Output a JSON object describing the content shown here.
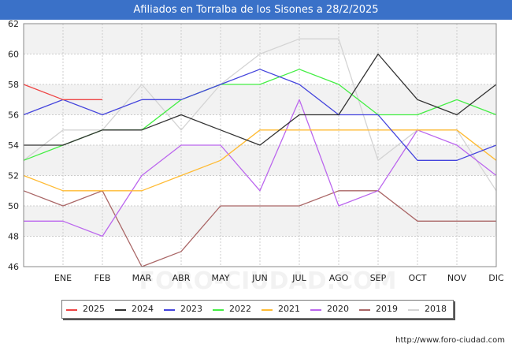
{
  "header": {
    "title": "Afiliados en Torralba de los Sisones a 28/2/2025"
  },
  "footer": {
    "url": "http://www.foro-ciudad.com"
  },
  "watermark": "FORO-CIUDAD.COM",
  "colors": {
    "header_bg": "#3a71c8",
    "band": "#f2f2f2",
    "grid": "#cccccc"
  },
  "chart_data": {
    "type": "line",
    "title": "Afiliados en Torralba de los Sisones a 28/2/2025",
    "xlabel": "",
    "ylabel": "",
    "categories": [
      "",
      "ENE",
      "FEB",
      "MAR",
      "ABR",
      "MAY",
      "JUN",
      "JUL",
      "AGO",
      "SEP",
      "OCT",
      "NOV",
      "DIC"
    ],
    "ylim": [
      46,
      62
    ],
    "yticks": [
      46,
      48,
      50,
      52,
      54,
      56,
      58,
      60,
      62
    ],
    "grid": true,
    "legend_position": "bottom",
    "series": [
      {
        "name": "2025",
        "color": "#ee4444",
        "values": [
          58,
          57,
          57,
          null,
          null,
          null,
          null,
          null,
          null,
          null,
          null,
          null,
          null
        ]
      },
      {
        "name": "2024",
        "color": "#333333",
        "values": [
          54,
          54,
          55,
          55,
          56,
          55,
          54,
          56,
          56,
          60,
          57,
          56,
          58
        ]
      },
      {
        "name": "2023",
        "color": "#4444dd",
        "values": [
          56,
          57,
          56,
          57,
          57,
          58,
          59,
          58,
          56,
          56,
          53,
          53,
          54
        ]
      },
      {
        "name": "2022",
        "color": "#44ee44",
        "values": [
          53,
          54,
          55,
          55,
          57,
          58,
          58,
          59,
          58,
          56,
          56,
          57,
          56
        ]
      },
      {
        "name": "2021",
        "color": "#ffbb33",
        "values": [
          52,
          51,
          51,
          51,
          52,
          53,
          55,
          55,
          55,
          55,
          55,
          55,
          53
        ]
      },
      {
        "name": "2020",
        "color": "#bb66ee",
        "values": [
          49,
          49,
          48,
          52,
          54,
          54,
          51,
          57,
          50,
          51,
          55,
          54,
          52
        ]
      },
      {
        "name": "2019",
        "color": "#aa6666",
        "values": [
          51,
          50,
          51,
          46,
          47,
          50,
          50,
          50,
          51,
          51,
          49,
          49,
          49
        ]
      },
      {
        "name": "2018",
        "color": "#d4d4d4",
        "values": [
          53,
          55,
          55,
          58,
          55,
          58,
          60,
          61,
          61,
          53,
          55,
          55,
          51
        ]
      }
    ]
  }
}
